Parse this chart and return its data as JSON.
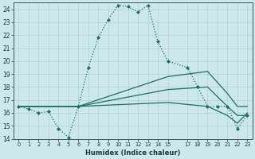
{
  "xlabel": "Humidex (Indice chaleur)",
  "xlim": [
    -0.5,
    23.5
  ],
  "ylim": [
    14,
    24.5
  ],
  "yticks": [
    14,
    15,
    16,
    17,
    18,
    19,
    20,
    21,
    22,
    23,
    24
  ],
  "xticks": [
    0,
    1,
    2,
    3,
    4,
    5,
    6,
    7,
    8,
    9,
    10,
    11,
    12,
    13,
    14,
    15,
    17,
    18,
    19,
    20,
    21,
    22,
    23
  ],
  "background_color": "#cde8ec",
  "grid_color": "#a8cdd4",
  "line_color": "#1a7060",
  "lines": [
    {
      "x": [
        0,
        1,
        2,
        3,
        4,
        5,
        6,
        7,
        8,
        9,
        10,
        11,
        12,
        13,
        14,
        15,
        17,
        18,
        19,
        20,
        21,
        22,
        23
      ],
      "y": [
        16.5,
        16.3,
        16.0,
        16.1,
        14.8,
        14.1,
        16.5,
        19.5,
        21.8,
        23.2,
        24.3,
        24.2,
        23.8,
        24.3,
        21.5,
        20.0,
        19.5,
        18.0,
        16.5,
        16.5,
        16.5,
        14.8,
        15.8
      ],
      "linestyle": ":",
      "marker": "D",
      "markersize": 2.0,
      "linewidth": 0.9
    },
    {
      "x": [
        0,
        6,
        15,
        19,
        21,
        22,
        23
      ],
      "y": [
        16.5,
        16.5,
        18.8,
        19.2,
        17.5,
        16.5,
        16.5
      ],
      "linestyle": "-",
      "marker": null,
      "markersize": 0,
      "linewidth": 0.9
    },
    {
      "x": [
        0,
        6,
        15,
        19,
        21,
        22,
        23
      ],
      "y": [
        16.5,
        16.5,
        17.8,
        18.0,
        16.5,
        15.8,
        15.8
      ],
      "linestyle": "-",
      "marker": null,
      "markersize": 0,
      "linewidth": 0.9
    },
    {
      "x": [
        0,
        6,
        15,
        19,
        21,
        22,
        23
      ],
      "y": [
        16.5,
        16.5,
        16.8,
        16.5,
        15.8,
        15.2,
        16.0
      ],
      "linestyle": "-",
      "marker": null,
      "markersize": 0,
      "linewidth": 0.9
    }
  ]
}
